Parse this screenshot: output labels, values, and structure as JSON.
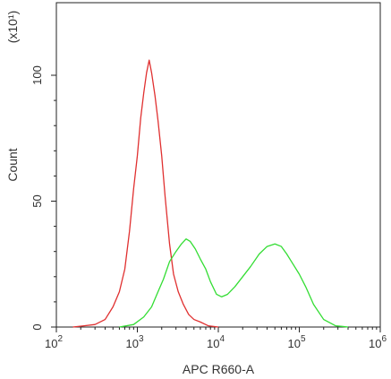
{
  "chart_data": {
    "type": "line",
    "title": "",
    "xlabel": "APC R660-A",
    "ylabel": "Count",
    "y_multiplier_label": "(x10¹)",
    "x_scale": "log",
    "xlim": [
      100,
      1000000
    ],
    "ylim": [
      0,
      100
    ],
    "x_ticks": [
      {
        "value": 100,
        "base": "10",
        "exp": "2"
      },
      {
        "value": 1000,
        "base": "10",
        "exp": "3"
      },
      {
        "value": 10000,
        "base": "10",
        "exp": "4"
      },
      {
        "value": 100000,
        "base": "10",
        "exp": "5"
      },
      {
        "value": 1000000,
        "base": "10",
        "exp": "6"
      }
    ],
    "y_ticks": [
      0,
      50,
      100
    ],
    "grid": false,
    "series": [
      {
        "color": "#e03030",
        "points": [
          [
            160,
            0
          ],
          [
            220,
            0.5
          ],
          [
            300,
            1
          ],
          [
            400,
            3
          ],
          [
            500,
            8
          ],
          [
            600,
            14
          ],
          [
            700,
            23
          ],
          [
            800,
            38
          ],
          [
            900,
            55
          ],
          [
            1000,
            68
          ],
          [
            1100,
            83
          ],
          [
            1200,
            93
          ],
          [
            1300,
            101
          ],
          [
            1400,
            106
          ],
          [
            1500,
            101
          ],
          [
            1650,
            92
          ],
          [
            1800,
            82
          ],
          [
            2000,
            68
          ],
          [
            2200,
            52
          ],
          [
            2500,
            33
          ],
          [
            2800,
            21
          ],
          [
            3200,
            14
          ],
          [
            3700,
            9
          ],
          [
            4300,
            5
          ],
          [
            5000,
            3
          ],
          [
            6000,
            2
          ],
          [
            7500,
            0.5
          ],
          [
            10000,
            0
          ]
        ]
      },
      {
        "color": "#33dd33",
        "points": [
          [
            600,
            0
          ],
          [
            900,
            1
          ],
          [
            1200,
            4
          ],
          [
            1500,
            8
          ],
          [
            1800,
            14
          ],
          [
            2100,
            19
          ],
          [
            2500,
            26
          ],
          [
            3000,
            30
          ],
          [
            3500,
            33
          ],
          [
            4000,
            35
          ],
          [
            4500,
            34
          ],
          [
            5200,
            31
          ],
          [
            6000,
            27
          ],
          [
            7000,
            23
          ],
          [
            8000,
            18
          ],
          [
            9500,
            13
          ],
          [
            11000,
            12
          ],
          [
            13000,
            13
          ],
          [
            16000,
            16
          ],
          [
            20000,
            20
          ],
          [
            25000,
            24
          ],
          [
            32000,
            29
          ],
          [
            40000,
            32
          ],
          [
            50000,
            33
          ],
          [
            60000,
            32
          ],
          [
            70000,
            29
          ],
          [
            80000,
            26
          ],
          [
            100000,
            21
          ],
          [
            120000,
            16
          ],
          [
            150000,
            9
          ],
          [
            200000,
            3
          ],
          [
            280000,
            0.5
          ],
          [
            400000,
            0
          ]
        ]
      }
    ]
  }
}
